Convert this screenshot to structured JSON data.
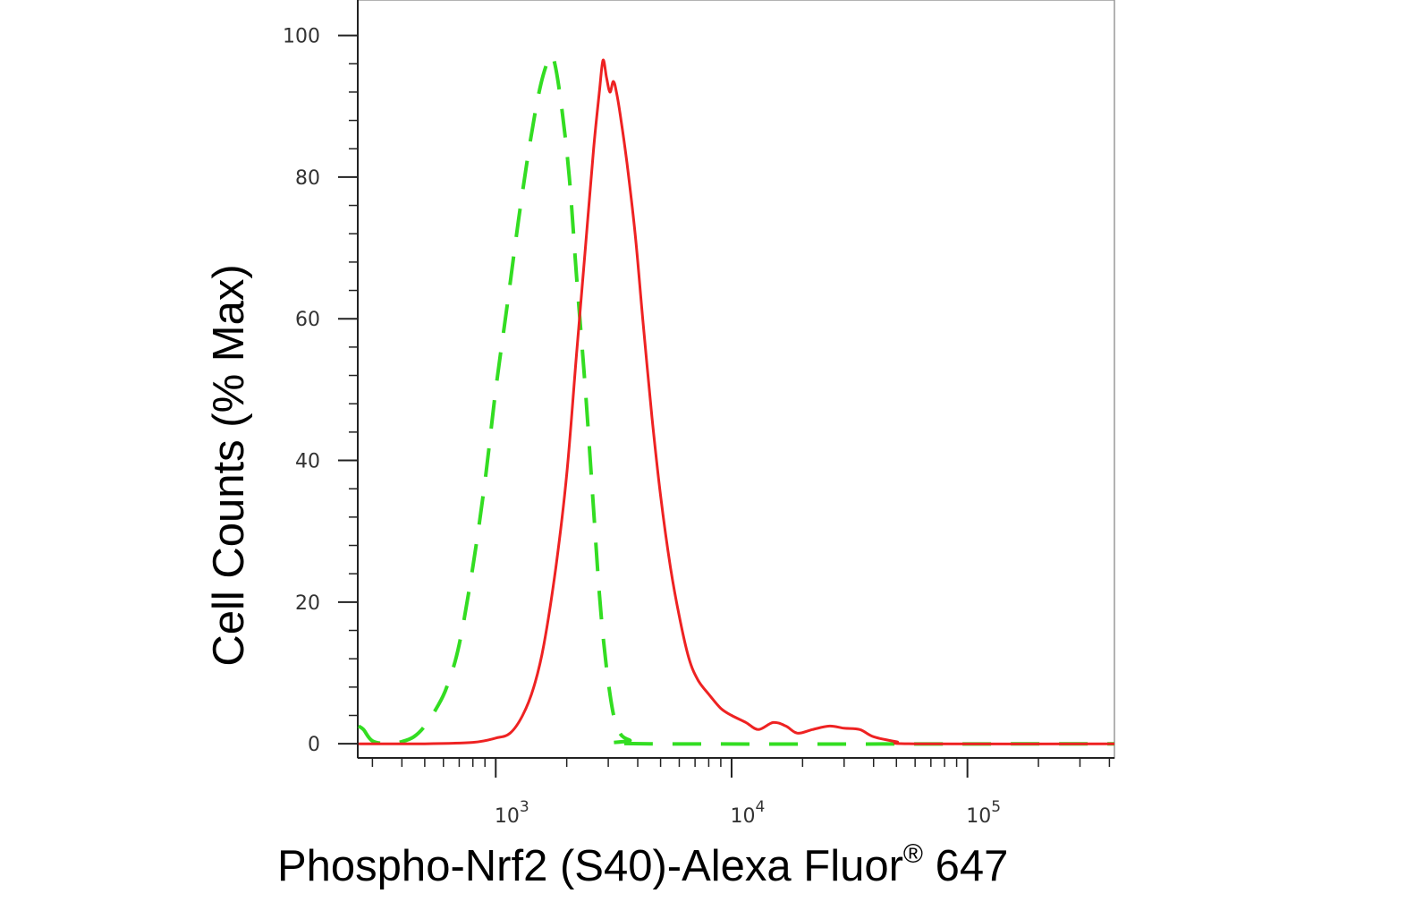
{
  "chart_data": {
    "type": "line",
    "title": "",
    "xlabel": "Phospho-Nrf2 (S40)-Alexa Fluor",
    "xlabel_mark": "®",
    "xlabel_tail": " 647",
    "ylabel": "Cell Counts (% Max)",
    "x_scale": "log",
    "xlim": [
      260,
      420000
    ],
    "ylim": [
      -2,
      105
    ],
    "grid": false,
    "legend": "none",
    "y_ticks": [
      0,
      20,
      40,
      60,
      80,
      100
    ],
    "x_ticks": [
      {
        "value": 1000,
        "base": "10",
        "exp": "3"
      },
      {
        "value": 10000,
        "base": "10",
        "exp": "4"
      },
      {
        "value": 100000,
        "base": "10",
        "exp": "5"
      }
    ],
    "series": [
      {
        "color": "#33dd22",
        "style": "dashed",
        "points": [
          [
            262,
            2.5
          ],
          [
            275,
            2.0
          ],
          [
            300,
            0.4
          ],
          [
            350,
            0.0
          ],
          [
            400,
            0.3
          ],
          [
            450,
            1.0
          ],
          [
            500,
            2.5
          ],
          [
            560,
            5.0
          ],
          [
            620,
            8.0
          ],
          [
            700,
            14.0
          ],
          [
            800,
            25.0
          ],
          [
            900,
            37.0
          ],
          [
            1000,
            50.0
          ],
          [
            1120,
            62.0
          ],
          [
            1250,
            74.0
          ],
          [
            1400,
            85.0
          ],
          [
            1550,
            93.0
          ],
          [
            1700,
            97.0
          ],
          [
            1780,
            96.0
          ],
          [
            1900,
            90.0
          ],
          [
            2050,
            80.0
          ],
          [
            2200,
            66.0
          ],
          [
            2400,
            50.0
          ],
          [
            2600,
            33.0
          ],
          [
            2800,
            18.0
          ],
          [
            3050,
            7.0
          ],
          [
            3300,
            2.0
          ],
          [
            3700,
            0.5
          ],
          [
            4500,
            0.0
          ],
          [
            420000,
            0.0
          ]
        ]
      },
      {
        "color": "#ee2222",
        "style": "solid",
        "points": [
          [
            262,
            0.0
          ],
          [
            500,
            0.0
          ],
          [
            800,
            0.2
          ],
          [
            1000,
            0.8
          ],
          [
            1150,
            1.5
          ],
          [
            1300,
            4.0
          ],
          [
            1450,
            8.0
          ],
          [
            1600,
            14.0
          ],
          [
            1800,
            25.0
          ],
          [
            2000,
            38.0
          ],
          [
            2200,
            55.0
          ],
          [
            2400,
            70.0
          ],
          [
            2600,
            84.0
          ],
          [
            2750,
            92.0
          ],
          [
            2850,
            96.5
          ],
          [
            2950,
            94.0
          ],
          [
            3050,
            92.0
          ],
          [
            3150,
            93.5
          ],
          [
            3250,
            92.0
          ],
          [
            3400,
            88.0
          ],
          [
            3600,
            82.0
          ],
          [
            3900,
            72.0
          ],
          [
            4200,
            60.0
          ],
          [
            4600,
            46.0
          ],
          [
            5000,
            35.0
          ],
          [
            5500,
            25.0
          ],
          [
            6000,
            18.0
          ],
          [
            6600,
            12.0
          ],
          [
            7200,
            9.0
          ],
          [
            8000,
            7.0
          ],
          [
            9000,
            5.0
          ],
          [
            10000,
            4.0
          ],
          [
            11500,
            3.0
          ],
          [
            13000,
            2.0
          ],
          [
            15000,
            3.0
          ],
          [
            17000,
            2.5
          ],
          [
            19000,
            1.5
          ],
          [
            22000,
            2.0
          ],
          [
            26000,
            2.5
          ],
          [
            30000,
            2.2
          ],
          [
            35000,
            2.0
          ],
          [
            40000,
            1.0
          ],
          [
            50000,
            0.3
          ],
          [
            60000,
            0.0
          ],
          [
            420000,
            0.0
          ]
        ]
      }
    ]
  }
}
